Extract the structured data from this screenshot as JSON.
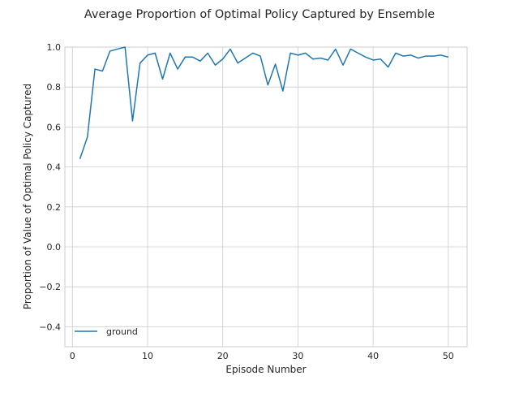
{
  "chart_data": {
    "type": "line",
    "title": "Average Proportion of Optimal Policy Captured by Ensemble",
    "xlabel": "Episode Number",
    "ylabel": "Proportion of Value of Optimal Policy Captured",
    "xlim": [
      -1,
      52.5
    ],
    "ylim": [
      -0.5,
      1.0
    ],
    "xticks": [
      0,
      10,
      20,
      30,
      40,
      50
    ],
    "yticks": [
      -0.4,
      -0.2,
      0.0,
      0.2,
      0.4,
      0.6,
      0.8,
      1.0
    ],
    "ytick_labels": [
      "−0.4",
      "−0.2",
      "0.0",
      "0.2",
      "0.4",
      "0.6",
      "0.8",
      "1.0"
    ],
    "grid": true,
    "legend_position": "lower-left",
    "series": [
      {
        "name": "ground",
        "color": "#1f77b4",
        "x": [
          1,
          2,
          3,
          4,
          5,
          6,
          7,
          8,
          9,
          10,
          11,
          12,
          13,
          14,
          15,
          16,
          17,
          18,
          19,
          20,
          21,
          22,
          23,
          24,
          25,
          26,
          27,
          28,
          29,
          30,
          31,
          32,
          33,
          34,
          35,
          36,
          37,
          38,
          39,
          40,
          41,
          42,
          43,
          44,
          45,
          46,
          47,
          48,
          49,
          50
        ],
        "y": [
          0.44,
          0.55,
          0.89,
          0.88,
          0.98,
          0.99,
          1.0,
          0.63,
          0.92,
          0.96,
          0.97,
          0.84,
          0.97,
          0.89,
          0.95,
          0.95,
          0.93,
          0.97,
          0.91,
          0.94,
          0.99,
          0.92,
          0.945,
          0.97,
          0.955,
          0.81,
          0.915,
          0.78,
          0.97,
          0.96,
          0.97,
          0.94,
          0.945,
          0.935,
          0.99,
          0.91,
          0.99,
          0.97,
          0.95,
          0.935,
          0.94,
          0.9,
          0.97,
          0.955,
          0.96,
          0.945,
          0.955,
          0.955,
          0.96,
          0.95
        ]
      }
    ]
  }
}
